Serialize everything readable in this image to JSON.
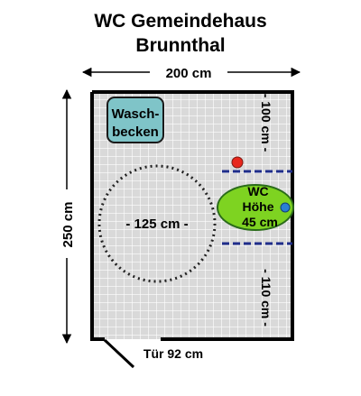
{
  "title": {
    "line1": "WC Gemeindehaus",
    "line2": "Brunnthal"
  },
  "dimensions": {
    "width": "200 cm",
    "height": "250 cm",
    "top_right": "- 100 cm -",
    "bottom_right": "- 110 cm -",
    "turning_circle": "- 125 cm -",
    "door": "Tür 92 cm"
  },
  "fixtures": {
    "sink_line1": "Wasch-",
    "sink_line2": "becken",
    "wc_line1": "WC",
    "wc_line2": "Höhe",
    "wc_line3": "45 cm"
  },
  "colors": {
    "grid_fill": "#d9d9d9",
    "grid_line": "#ffffff",
    "wall": "#000000",
    "sink": "#7fc4c8",
    "wc": "#7ed321",
    "grab_bar": "#1f2d8a",
    "red_dot": "#e8261c",
    "blue_dot": "#2a7fd4"
  }
}
